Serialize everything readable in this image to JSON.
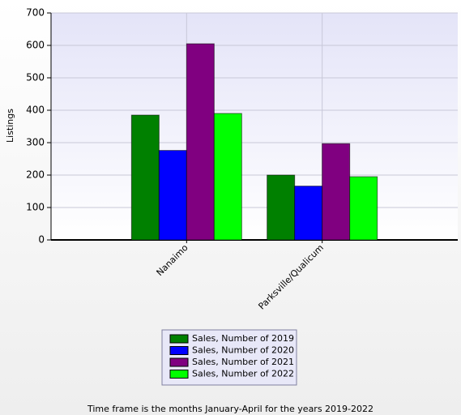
{
  "chart_data": {
    "type": "bar",
    "ylabel": "Listings",
    "footnote": "Time frame is the months January-April for the years 2019-2022",
    "categories": [
      "Nanaimo",
      "Parksville/Qualicum"
    ],
    "series": [
      {
        "name": "Sales, Number of 2019",
        "color": "#008000",
        "values": [
          385,
          200
        ]
      },
      {
        "name": "Sales, Number of 2020",
        "color": "#0000ff",
        "values": [
          276,
          166
        ]
      },
      {
        "name": "Sales, Number of 2021",
        "color": "#800080",
        "values": [
          605,
          297
        ]
      },
      {
        "name": "Sales, Number of 2022",
        "color": "#00ff00",
        "values": [
          390,
          195
        ]
      }
    ],
    "ylim": [
      0,
      700
    ],
    "yticks": [
      0,
      100,
      200,
      300,
      400,
      500,
      600,
      700
    ],
    "grid": true
  }
}
